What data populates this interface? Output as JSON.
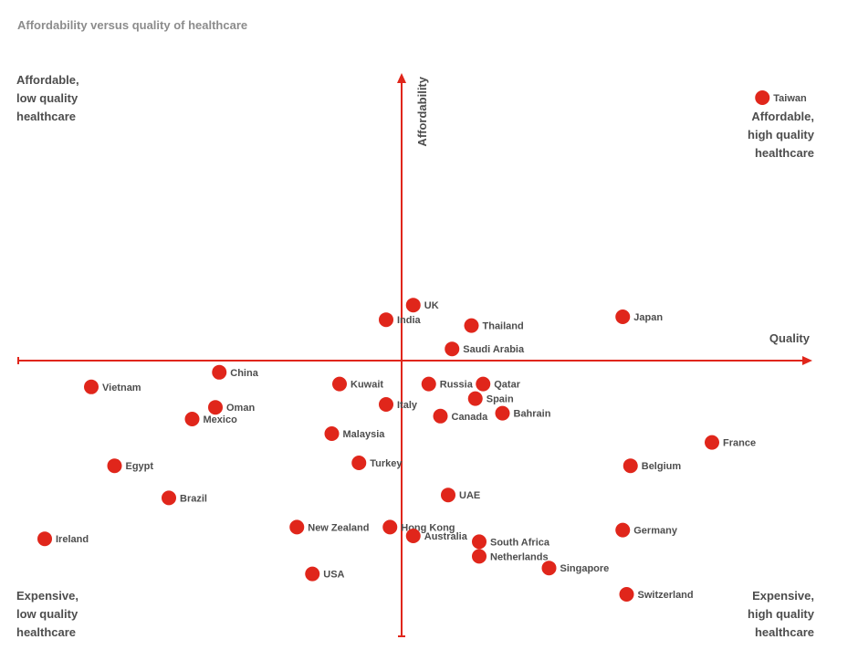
{
  "title": "Affordability versus quality of healthcare",
  "quadrants": {
    "top_left": "Affordable,\nlow quality\nhealthcare",
    "top_right": "Affordable,\nhigh quality\nhealthcare",
    "bottom_left": "Expensive,\nlow quality\nhealthcare",
    "bottom_right": "Expensive,\nhigh quality\nhealthcare"
  },
  "colors": {
    "accent": "#e0261b",
    "text": "#4d4d4d",
    "title": "#8c8c8c"
  },
  "chart_data": {
    "type": "scatter",
    "title": "Affordability versus quality of healthcare",
    "xlabel": "Quality",
    "ylabel": "Affordability",
    "xlim": [
      -10,
      10
    ],
    "ylim": [
      -10,
      10
    ],
    "grid": false,
    "points": [
      {
        "label": "Taiwan",
        "x": 9.3,
        "y": 9.0
      },
      {
        "label": "UK",
        "x": 0.3,
        "y": 1.9
      },
      {
        "label": "India",
        "x": -0.4,
        "y": 1.4
      },
      {
        "label": "Thailand",
        "x": 1.8,
        "y": 1.2
      },
      {
        "label": "Japan",
        "x": 5.7,
        "y": 1.5
      },
      {
        "label": "Saudi Arabia",
        "x": 1.3,
        "y": 0.4
      },
      {
        "label": "China",
        "x": -4.7,
        "y": -0.4
      },
      {
        "label": "Vietnam",
        "x": -8.0,
        "y": -0.9
      },
      {
        "label": "Kuwait",
        "x": -1.6,
        "y": -0.8
      },
      {
        "label": "Russia",
        "x": 0.7,
        "y": -0.8
      },
      {
        "label": "Qatar",
        "x": 2.1,
        "y": -0.8
      },
      {
        "label": "Spain",
        "x": 1.9,
        "y": -1.3
      },
      {
        "label": "Oman",
        "x": -4.8,
        "y": -1.6
      },
      {
        "label": "Italy",
        "x": -0.4,
        "y": -1.5
      },
      {
        "label": "Bahrain",
        "x": 2.6,
        "y": -1.8
      },
      {
        "label": "Canada",
        "x": 1.0,
        "y": -1.9
      },
      {
        "label": "Mexico",
        "x": -5.4,
        "y": -2.0
      },
      {
        "label": "Malaysia",
        "x": -1.8,
        "y": -2.5
      },
      {
        "label": "France",
        "x": 8.0,
        "y": -2.8
      },
      {
        "label": "Egypt",
        "x": -7.4,
        "y": -3.6
      },
      {
        "label": "Turkey",
        "x": -1.1,
        "y": -3.5
      },
      {
        "label": "Belgium",
        "x": 5.9,
        "y": -3.6
      },
      {
        "label": "Brazil",
        "x": -6.0,
        "y": -4.7
      },
      {
        "label": "UAE",
        "x": 1.2,
        "y": -4.6
      },
      {
        "label": "New Zealand",
        "x": -2.7,
        "y": -5.7
      },
      {
        "label": "Hong Kong",
        "x": -0.3,
        "y": -5.7
      },
      {
        "label": "Ireland",
        "x": -9.2,
        "y": -6.1
      },
      {
        "label": "Australia",
        "x": 0.3,
        "y": -6.0
      },
      {
        "label": "South Africa",
        "x": 2.0,
        "y": -6.2
      },
      {
        "label": "Germany",
        "x": 5.7,
        "y": -5.8
      },
      {
        "label": "Netherlands",
        "x": 2.0,
        "y": -6.7
      },
      {
        "label": "Singapore",
        "x": 3.8,
        "y": -7.1
      },
      {
        "label": "USA",
        "x": -2.3,
        "y": -7.3
      },
      {
        "label": "Switzerland",
        "x": 5.8,
        "y": -8.0
      }
    ]
  }
}
